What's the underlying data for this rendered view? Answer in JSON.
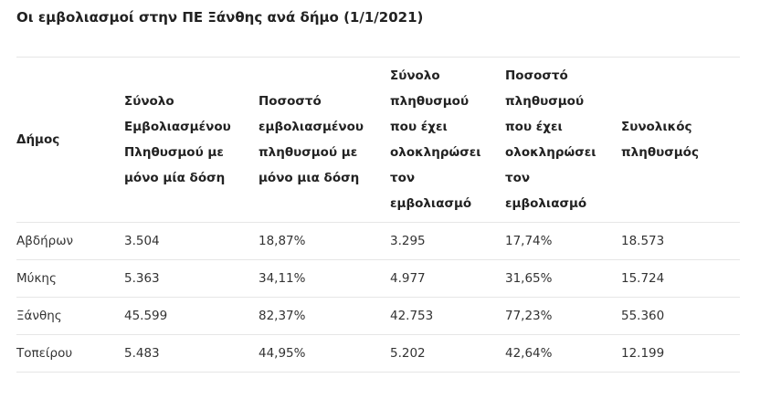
{
  "title": "Οι εμβολιασμοί στην ΠΕ Ξάνθης ανά δήμο (1/1/2021)",
  "table": {
    "headers": [
      "Δήμος",
      "Σύνολο Εμβολιασμένου Πληθυσμού με μόνο μία δόση",
      "Ποσοστό εμβολιασμένου πληθυσμού με μόνο μια δόση",
      "Σύνολο πληθυσμού που έχει ολοκληρώσει τον εμβολιασμό",
      "Ποσοστό πληθυσμού που έχει ολοκληρώσει τον εμβολιασμό",
      "Συνολικός πληθυσμός"
    ],
    "rows": [
      [
        "Αβδήρων",
        "3.504",
        "18,87%",
        "3.295",
        "17,74%",
        "18.573"
      ],
      [
        "Μύκης",
        "5.363",
        "34,11%",
        "4.977",
        "31,65%",
        "15.724"
      ],
      [
        "Ξάνθης",
        "45.599",
        "82,37%",
        "42.753",
        "77,23%",
        "55.360"
      ],
      [
        "Τοπείρου",
        "5.483",
        "44,95%",
        "5.202",
        "42,64%",
        "12.199"
      ]
    ]
  }
}
